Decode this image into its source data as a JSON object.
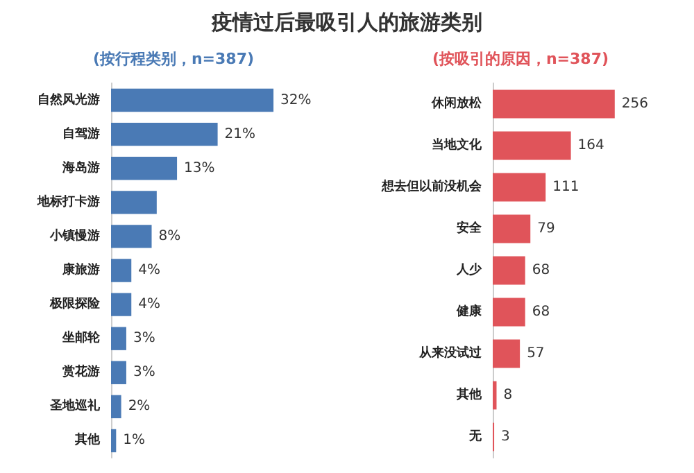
{
  "chart_data": [
    {
      "type": "bar",
      "orientation": "horizontal",
      "title": "疫情过后最吸引人的旅游类别",
      "subtitle": "(按行程类别，n=387)",
      "categories": [
        "自然风光游",
        "自驾游",
        "海岛游",
        "地标打卡游",
        "小镇慢游",
        "康旅游",
        "极限探险",
        "坐邮轮",
        "赏花游",
        "圣地巡礼",
        "其他"
      ],
      "values": [
        32,
        21,
        13,
        9,
        8,
        4,
        4,
        3,
        3,
        2,
        1
      ],
      "value_labels": [
        "32%",
        "21%",
        "13%",
        null,
        "8%",
        "4%",
        "4%",
        "3%",
        "3%",
        "2%",
        "1%"
      ],
      "color": "#4a7ab5"
    },
    {
      "type": "bar",
      "orientation": "horizontal",
      "subtitle": "(按吸引的原因，n=387)",
      "categories": [
        "休闲放松",
        "当地文化",
        "想去但以前没机会",
        "安全",
        "人少",
        "健康",
        "从来没试过",
        "其他",
        "无"
      ],
      "values": [
        256,
        164,
        111,
        79,
        68,
        68,
        57,
        8,
        3
      ],
      "data_labels": true,
      "color": "#e0545a"
    }
  ]
}
